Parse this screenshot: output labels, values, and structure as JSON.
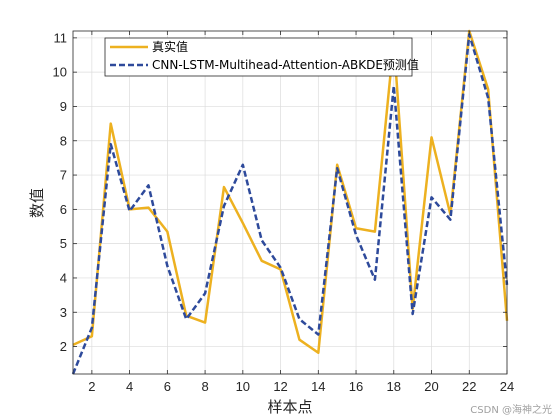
{
  "chart_data": {
    "type": "line",
    "xlabel": "样本点",
    "ylabel": "数值",
    "xlim": [
      1,
      24
    ],
    "ylim": [
      1.2,
      11.2
    ],
    "xticks": [
      2,
      4,
      6,
      8,
      10,
      12,
      14,
      16,
      18,
      20,
      22,
      24
    ],
    "yticks": [
      2,
      3,
      4,
      5,
      6,
      7,
      8,
      9,
      10,
      11
    ],
    "grid": true,
    "legend_position": "top-left",
    "x": [
      1,
      2,
      3,
      4,
      5,
      6,
      7,
      8,
      9,
      10,
      11,
      12,
      13,
      14,
      15,
      16,
      17,
      18,
      19,
      20,
      21,
      22,
      23,
      24
    ],
    "series": [
      {
        "name": "真实值",
        "color": "#EDB120",
        "style": "solid",
        "values": [
          2.05,
          2.3,
          8.5,
          6.0,
          6.05,
          5.35,
          2.9,
          2.7,
          6.65,
          5.6,
          4.5,
          4.25,
          2.2,
          1.82,
          7.3,
          5.45,
          5.35,
          10.9,
          3.1,
          8.1,
          5.85,
          11.2,
          9.5,
          2.75
        ]
      },
      {
        "name": "CNN-LSTM-Multihead-Attention-ABKDE预测值",
        "color": "#2E4A9B",
        "style": "dashed",
        "values": [
          1.2,
          2.55,
          7.9,
          5.95,
          6.7,
          4.35,
          2.8,
          3.55,
          6.1,
          7.3,
          5.1,
          4.3,
          2.8,
          2.35,
          7.2,
          5.25,
          3.95,
          9.6,
          2.95,
          6.35,
          5.7,
          11.1,
          9.25,
          3.8
        ]
      }
    ]
  },
  "watermark": "CSDN @海神之光"
}
